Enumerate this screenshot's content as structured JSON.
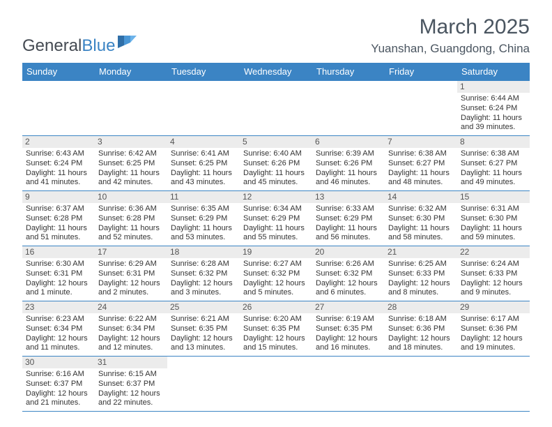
{
  "brand": {
    "part1": "General",
    "part2": "Blue"
  },
  "title": "March 2025",
  "location": "Yuanshan, Guangdong, China",
  "colors": {
    "header_bg": "#3b84c4",
    "header_text": "#ffffff",
    "daynum_bg": "#ececec",
    "text": "#333333",
    "title": "#4a5560",
    "border": "#3b84c4"
  },
  "typography": {
    "title_fontsize": 30,
    "location_fontsize": 17,
    "dayheader_fontsize": 13,
    "cell_fontsize": 11
  },
  "dayNames": [
    "Sunday",
    "Monday",
    "Tuesday",
    "Wednesday",
    "Thursday",
    "Friday",
    "Saturday"
  ],
  "weeks": [
    [
      {
        "n": "",
        "sr": "",
        "ss": "",
        "dl": ""
      },
      {
        "n": "",
        "sr": "",
        "ss": "",
        "dl": ""
      },
      {
        "n": "",
        "sr": "",
        "ss": "",
        "dl": ""
      },
      {
        "n": "",
        "sr": "",
        "ss": "",
        "dl": ""
      },
      {
        "n": "",
        "sr": "",
        "ss": "",
        "dl": ""
      },
      {
        "n": "",
        "sr": "",
        "ss": "",
        "dl": ""
      },
      {
        "n": "1",
        "sr": "Sunrise: 6:44 AM",
        "ss": "Sunset: 6:24 PM",
        "dl": "Daylight: 11 hours and 39 minutes."
      }
    ],
    [
      {
        "n": "2",
        "sr": "Sunrise: 6:43 AM",
        "ss": "Sunset: 6:24 PM",
        "dl": "Daylight: 11 hours and 41 minutes."
      },
      {
        "n": "3",
        "sr": "Sunrise: 6:42 AM",
        "ss": "Sunset: 6:25 PM",
        "dl": "Daylight: 11 hours and 42 minutes."
      },
      {
        "n": "4",
        "sr": "Sunrise: 6:41 AM",
        "ss": "Sunset: 6:25 PM",
        "dl": "Daylight: 11 hours and 43 minutes."
      },
      {
        "n": "5",
        "sr": "Sunrise: 6:40 AM",
        "ss": "Sunset: 6:26 PM",
        "dl": "Daylight: 11 hours and 45 minutes."
      },
      {
        "n": "6",
        "sr": "Sunrise: 6:39 AM",
        "ss": "Sunset: 6:26 PM",
        "dl": "Daylight: 11 hours and 46 minutes."
      },
      {
        "n": "7",
        "sr": "Sunrise: 6:38 AM",
        "ss": "Sunset: 6:27 PM",
        "dl": "Daylight: 11 hours and 48 minutes."
      },
      {
        "n": "8",
        "sr": "Sunrise: 6:38 AM",
        "ss": "Sunset: 6:27 PM",
        "dl": "Daylight: 11 hours and 49 minutes."
      }
    ],
    [
      {
        "n": "9",
        "sr": "Sunrise: 6:37 AM",
        "ss": "Sunset: 6:28 PM",
        "dl": "Daylight: 11 hours and 51 minutes."
      },
      {
        "n": "10",
        "sr": "Sunrise: 6:36 AM",
        "ss": "Sunset: 6:28 PM",
        "dl": "Daylight: 11 hours and 52 minutes."
      },
      {
        "n": "11",
        "sr": "Sunrise: 6:35 AM",
        "ss": "Sunset: 6:29 PM",
        "dl": "Daylight: 11 hours and 53 minutes."
      },
      {
        "n": "12",
        "sr": "Sunrise: 6:34 AM",
        "ss": "Sunset: 6:29 PM",
        "dl": "Daylight: 11 hours and 55 minutes."
      },
      {
        "n": "13",
        "sr": "Sunrise: 6:33 AM",
        "ss": "Sunset: 6:29 PM",
        "dl": "Daylight: 11 hours and 56 minutes."
      },
      {
        "n": "14",
        "sr": "Sunrise: 6:32 AM",
        "ss": "Sunset: 6:30 PM",
        "dl": "Daylight: 11 hours and 58 minutes."
      },
      {
        "n": "15",
        "sr": "Sunrise: 6:31 AM",
        "ss": "Sunset: 6:30 PM",
        "dl": "Daylight: 11 hours and 59 minutes."
      }
    ],
    [
      {
        "n": "16",
        "sr": "Sunrise: 6:30 AM",
        "ss": "Sunset: 6:31 PM",
        "dl": "Daylight: 12 hours and 1 minute."
      },
      {
        "n": "17",
        "sr": "Sunrise: 6:29 AM",
        "ss": "Sunset: 6:31 PM",
        "dl": "Daylight: 12 hours and 2 minutes."
      },
      {
        "n": "18",
        "sr": "Sunrise: 6:28 AM",
        "ss": "Sunset: 6:32 PM",
        "dl": "Daylight: 12 hours and 3 minutes."
      },
      {
        "n": "19",
        "sr": "Sunrise: 6:27 AM",
        "ss": "Sunset: 6:32 PM",
        "dl": "Daylight: 12 hours and 5 minutes."
      },
      {
        "n": "20",
        "sr": "Sunrise: 6:26 AM",
        "ss": "Sunset: 6:32 PM",
        "dl": "Daylight: 12 hours and 6 minutes."
      },
      {
        "n": "21",
        "sr": "Sunrise: 6:25 AM",
        "ss": "Sunset: 6:33 PM",
        "dl": "Daylight: 12 hours and 8 minutes."
      },
      {
        "n": "22",
        "sr": "Sunrise: 6:24 AM",
        "ss": "Sunset: 6:33 PM",
        "dl": "Daylight: 12 hours and 9 minutes."
      }
    ],
    [
      {
        "n": "23",
        "sr": "Sunrise: 6:23 AM",
        "ss": "Sunset: 6:34 PM",
        "dl": "Daylight: 12 hours and 11 minutes."
      },
      {
        "n": "24",
        "sr": "Sunrise: 6:22 AM",
        "ss": "Sunset: 6:34 PM",
        "dl": "Daylight: 12 hours and 12 minutes."
      },
      {
        "n": "25",
        "sr": "Sunrise: 6:21 AM",
        "ss": "Sunset: 6:35 PM",
        "dl": "Daylight: 12 hours and 13 minutes."
      },
      {
        "n": "26",
        "sr": "Sunrise: 6:20 AM",
        "ss": "Sunset: 6:35 PM",
        "dl": "Daylight: 12 hours and 15 minutes."
      },
      {
        "n": "27",
        "sr": "Sunrise: 6:19 AM",
        "ss": "Sunset: 6:35 PM",
        "dl": "Daylight: 12 hours and 16 minutes."
      },
      {
        "n": "28",
        "sr": "Sunrise: 6:18 AM",
        "ss": "Sunset: 6:36 PM",
        "dl": "Daylight: 12 hours and 18 minutes."
      },
      {
        "n": "29",
        "sr": "Sunrise: 6:17 AM",
        "ss": "Sunset: 6:36 PM",
        "dl": "Daylight: 12 hours and 19 minutes."
      }
    ],
    [
      {
        "n": "30",
        "sr": "Sunrise: 6:16 AM",
        "ss": "Sunset: 6:37 PM",
        "dl": "Daylight: 12 hours and 21 minutes."
      },
      {
        "n": "31",
        "sr": "Sunrise: 6:15 AM",
        "ss": "Sunset: 6:37 PM",
        "dl": "Daylight: 12 hours and 22 minutes."
      },
      {
        "n": "",
        "sr": "",
        "ss": "",
        "dl": ""
      },
      {
        "n": "",
        "sr": "",
        "ss": "",
        "dl": ""
      },
      {
        "n": "",
        "sr": "",
        "ss": "",
        "dl": ""
      },
      {
        "n": "",
        "sr": "",
        "ss": "",
        "dl": ""
      },
      {
        "n": "",
        "sr": "",
        "ss": "",
        "dl": ""
      }
    ]
  ]
}
